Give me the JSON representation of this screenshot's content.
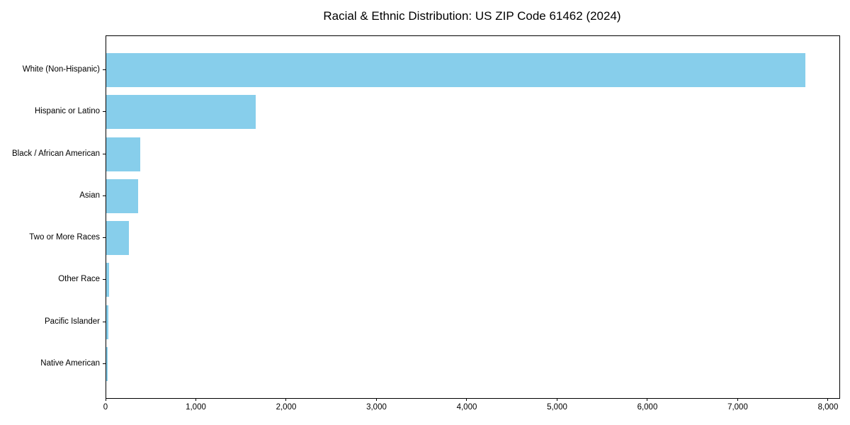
{
  "figure": {
    "background": "#ffffff",
    "accent_color": "#87CEEB",
    "axis_color": "#000000",
    "text_color": "#000000"
  },
  "chart_data": {
    "type": "bar",
    "orientation": "horizontal",
    "title": "Racial & Ethnic Distribution: US ZIP Code 61462 (2024)",
    "categories": [
      "White (Non-Hispanic)",
      "Hispanic or Latino",
      "Black / African American",
      "Asian",
      "Two or More Races",
      "Other Race",
      "Pacific Islander",
      "Native American"
    ],
    "values": [
      7740,
      1655,
      375,
      355,
      250,
      30,
      24,
      16
    ],
    "bar_color": "#87CEEB",
    "xlabel": "",
    "ylabel": "",
    "xlim": [
      0,
      8118
    ],
    "xticks": [
      0,
      1000,
      2000,
      3000,
      4000,
      5000,
      6000,
      7000,
      8000
    ],
    "xtick_labels": [
      "0",
      "1,000",
      "2,000",
      "3,000",
      "4,000",
      "5,000",
      "6,000",
      "7,000",
      "8,000"
    ],
    "grid": false,
    "legend": null
  }
}
